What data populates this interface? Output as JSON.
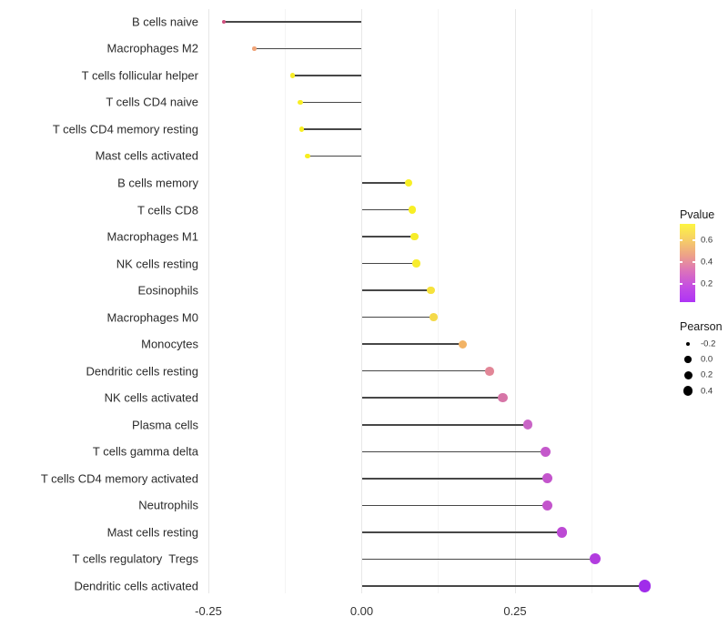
{
  "chart_data": {
    "type": "lollipop",
    "title": "",
    "xlabel": "",
    "ylabel": "",
    "x_tick_labels": [
      "-0.25",
      "0.00",
      "0.25"
    ],
    "x_tick_values": [
      -0.25,
      0.0,
      0.25
    ],
    "x_minor_gridlines": [
      -0.125,
      0.125,
      0.375
    ],
    "xlim": [
      -0.26,
      0.48
    ],
    "grid": "vertical-only",
    "categories": [
      "B cells naive",
      "Macrophages M2",
      "T cells follicular helper",
      "T cells CD4 naive",
      "T cells CD4 memory resting",
      "Mast cells activated",
      "B cells memory",
      "T cells CD8",
      "Macrophages M1",
      "NK cells resting",
      "Eosinophils",
      "Macrophages M0",
      "Monocytes",
      "Dendritic cells resting",
      "NK cells activated",
      "Plasma cells",
      "T cells gamma delta",
      "T cells CD4 memory activated",
      "Neutrophils",
      "Mast cells resting",
      "T cells regulatory  Tregs",
      "Dendritic cells activated"
    ],
    "series": [
      {
        "name": "Pearson",
        "values": [
          -0.225,
          -0.175,
          -0.113,
          -0.1,
          -0.098,
          -0.088,
          0.077,
          0.083,
          0.086,
          0.089,
          0.113,
          0.117,
          0.165,
          0.209,
          0.23,
          0.271,
          0.3,
          0.303,
          0.303,
          0.326,
          0.38,
          0.461
        ]
      }
    ],
    "point_colors": [
      "#CE4F7E",
      "#F0A478",
      "#F7EC27",
      "#F8EE24",
      "#F8EE24",
      "#F7ED1F",
      "#F8EF25",
      "#F8EF25",
      "#F7ED2A",
      "#F7EC2E",
      "#F6E23C",
      "#F4D94A",
      "#F2B365",
      "#E28697",
      "#D675A7",
      "#C965C6",
      "#C458CB",
      "#C355CC",
      "#C355CC",
      "#BC4AD4",
      "#B23CDF",
      "#A02CEA"
    ],
    "legend": {
      "pvalue": {
        "title": "Pvalue",
        "tick_labels": [
          "0.6",
          "0.4",
          "0.2"
        ],
        "gradient_stops": [
          "#FDF541",
          "#F6CF66",
          "#EDA288",
          "#DC73BA",
          "#C44EE2",
          "#AE34F5"
        ]
      },
      "pearson": {
        "title": "Pearson",
        "tick_labels": [
          "-0.2",
          "0.0",
          "0.2",
          "0.4"
        ]
      }
    }
  }
}
